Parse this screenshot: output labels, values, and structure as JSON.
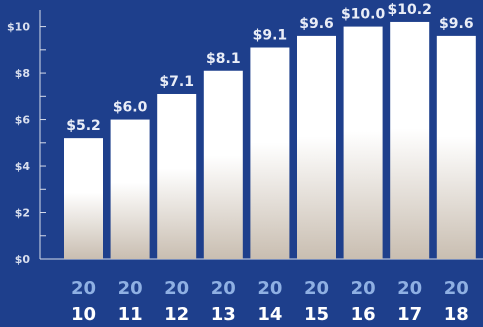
{
  "chart_data": {
    "type": "bar",
    "categories": [
      "2010",
      "2011",
      "2012",
      "2013",
      "2014",
      "2015",
      "2016",
      "2017",
      "2018"
    ],
    "category_parts": [
      [
        "20",
        "10"
      ],
      [
        "20",
        "11"
      ],
      [
        "20",
        "12"
      ],
      [
        "20",
        "13"
      ],
      [
        "20",
        "14"
      ],
      [
        "20",
        "15"
      ],
      [
        "20",
        "16"
      ],
      [
        "20",
        "17"
      ],
      [
        "20",
        "18"
      ]
    ],
    "values": [
      5.2,
      6.0,
      7.1,
      8.1,
      9.1,
      9.6,
      10.0,
      10.2,
      9.6
    ],
    "value_labels": [
      "$5.2",
      "$6.0",
      "$7.1",
      "$8.1",
      "$9.1",
      "$9.6",
      "$10.0",
      "$10.2",
      "$9.6"
    ],
    "ylim": [
      0,
      10.8
    ],
    "y_ticks": [
      0,
      2,
      4,
      6,
      8,
      10
    ],
    "y_tick_labels": [
      "$0",
      "$2",
      "$4",
      "$6",
      "$8",
      "$10"
    ],
    "title": "",
    "xlabel": "",
    "ylabel": "",
    "grid": false,
    "colors": {
      "background": "#1e3f8c",
      "bar_top": "#ffffff",
      "bar_bottom": "#c9beb1",
      "axis": "#d7dcea",
      "year_top": "#8fb0e3",
      "year_bottom": "#ffffff"
    }
  }
}
